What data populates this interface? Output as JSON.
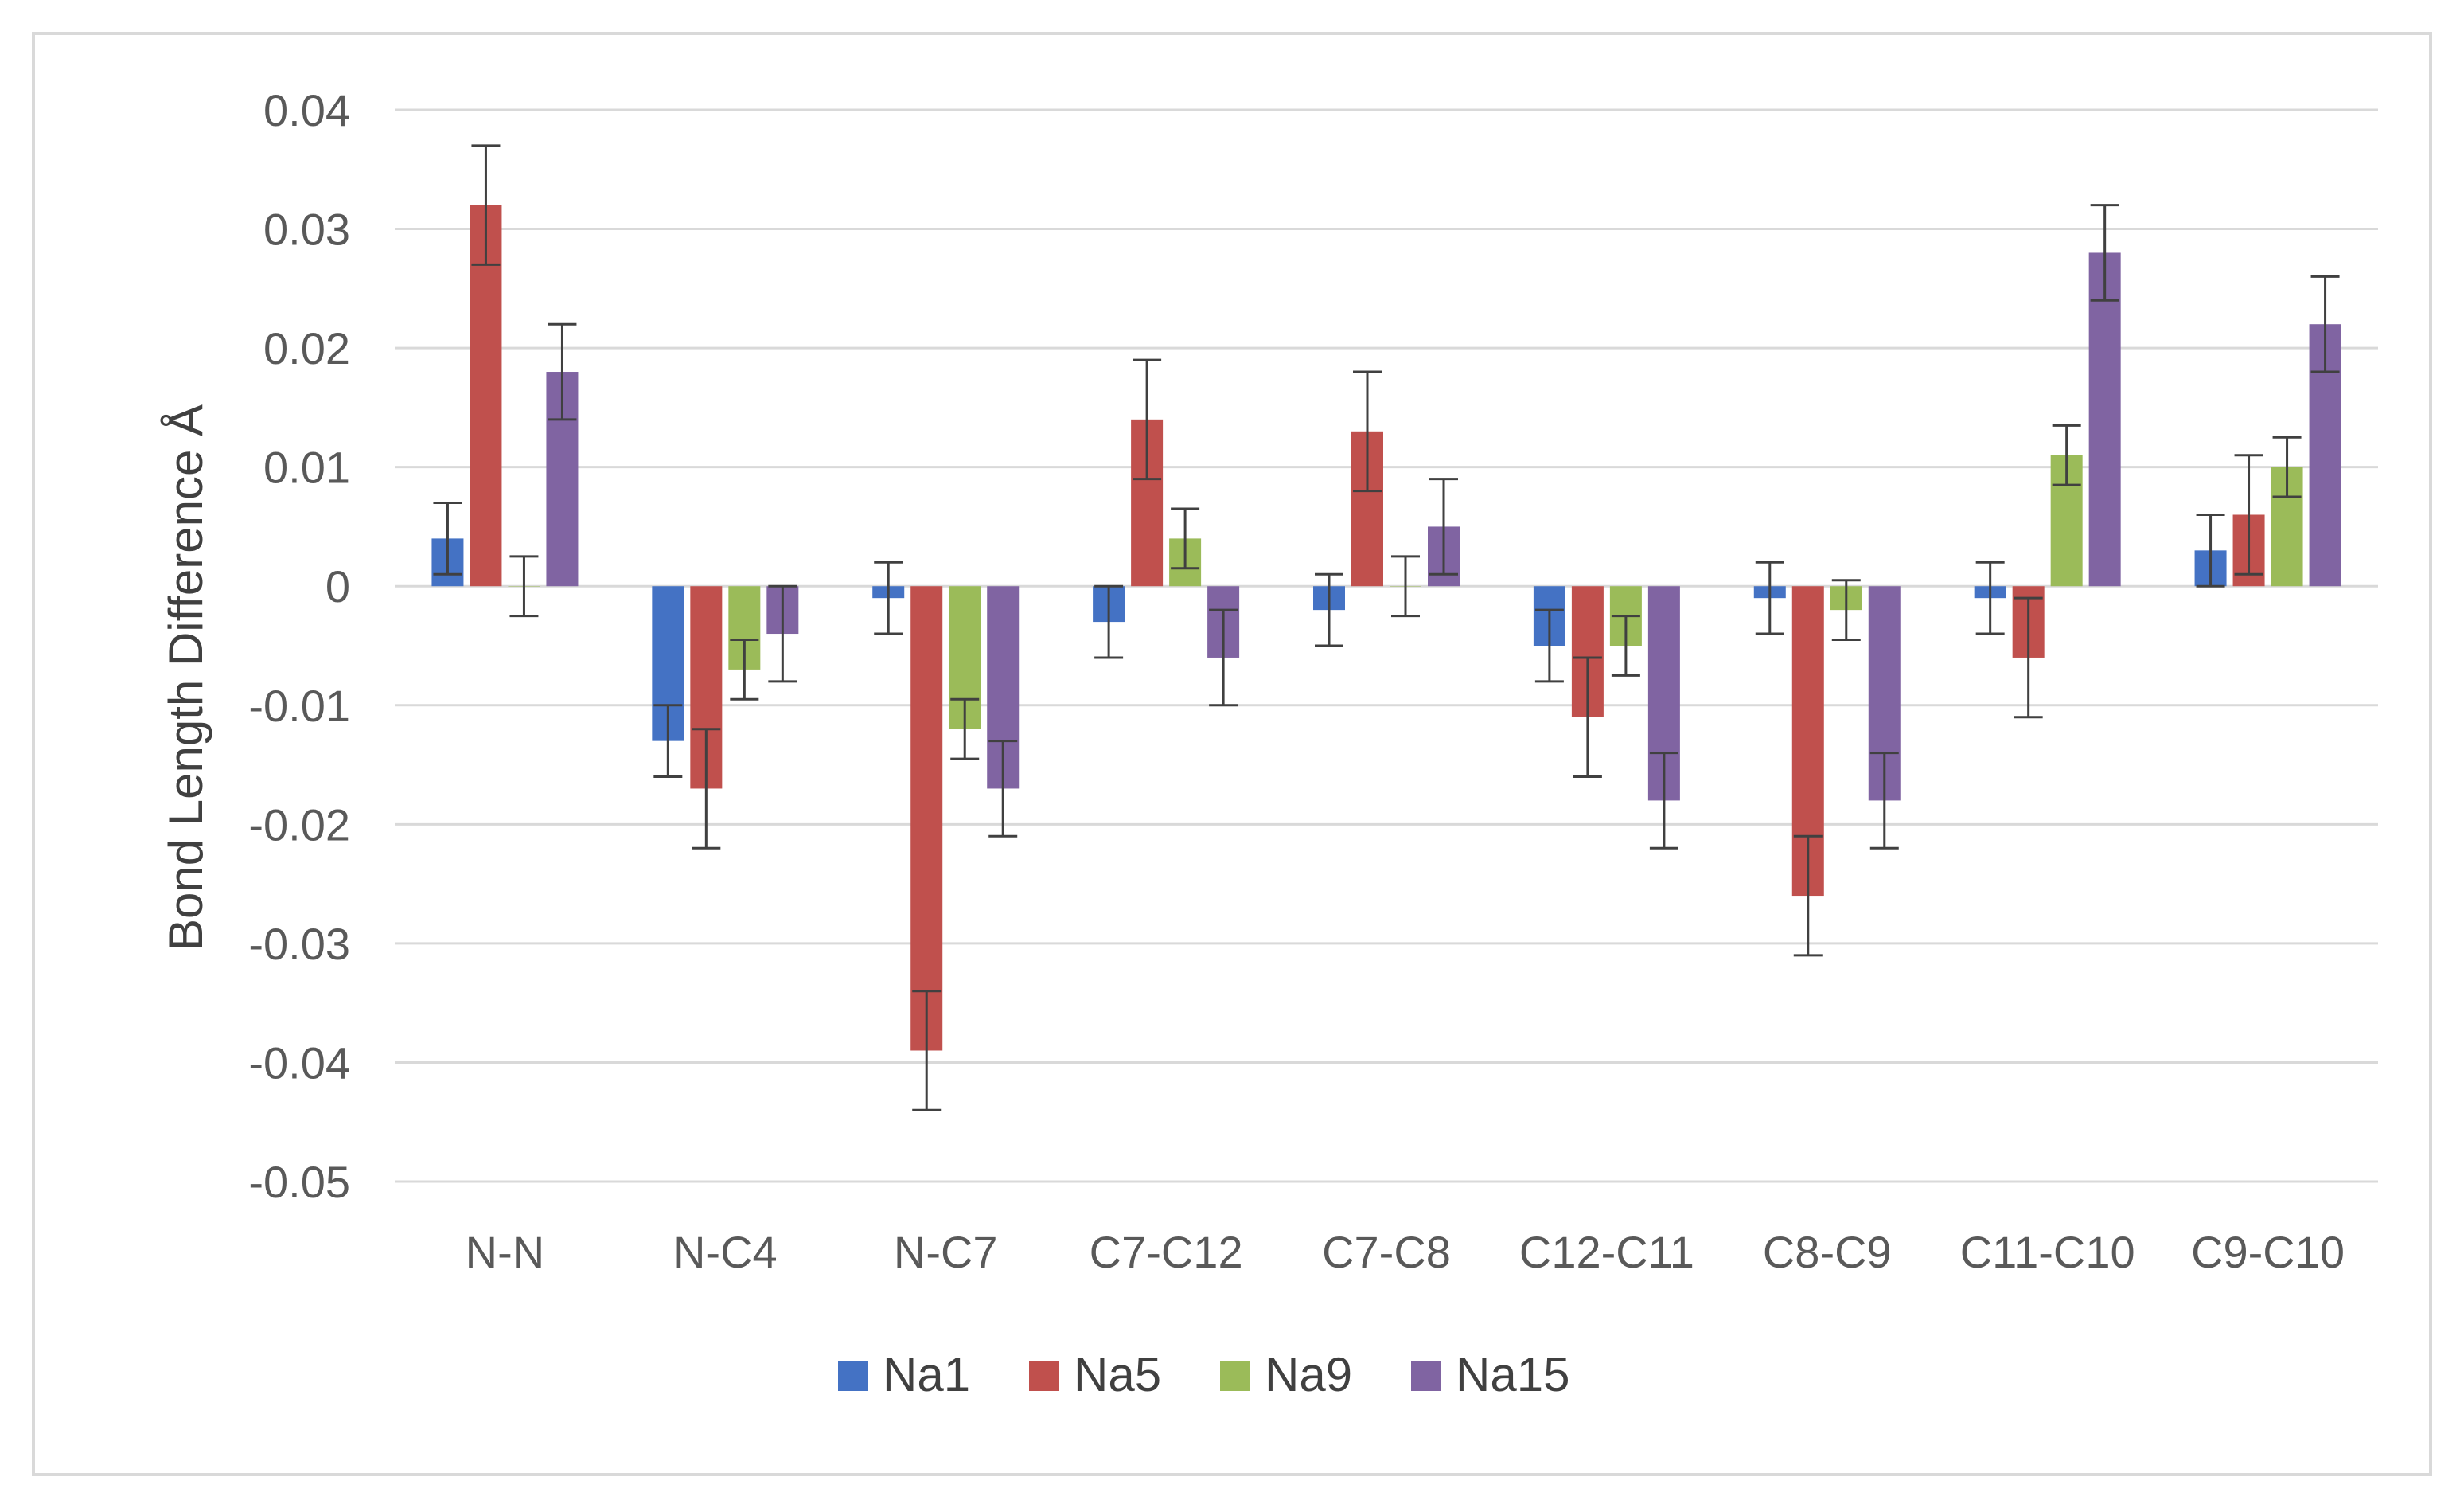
{
  "chart_data": {
    "type": "bar",
    "title": "",
    "xlabel": "",
    "ylabel": "Bond Length Difference Å",
    "ylim": [
      -0.05,
      0.04
    ],
    "yticks": [
      0.04,
      0.03,
      0.02,
      0.01,
      0,
      -0.01,
      -0.02,
      -0.03,
      -0.04,
      -0.05
    ],
    "ytick_labels": [
      "0.04",
      "0.03",
      "0.02",
      "0.01",
      "0",
      "-0.01",
      "-0.02",
      "-0.03",
      "-0.04",
      "-0.05"
    ],
    "grid": true,
    "legend_position": "bottom",
    "categories": [
      "N-N",
      "N-C4",
      "N-C7",
      "C7-C12",
      "C7-C8",
      "C12-C11",
      "C8-C9",
      "C11-C10",
      "C9-C10"
    ],
    "series": [
      {
        "name": "Na1",
        "color": "#4472c4",
        "values": [
          0.004,
          -0.013,
          -0.001,
          -0.003,
          -0.002,
          -0.005,
          -0.001,
          -0.001,
          0.003
        ],
        "errors": [
          0.003,
          0.003,
          0.003,
          0.003,
          0.003,
          0.003,
          0.003,
          0.003,
          0.003
        ]
      },
      {
        "name": "Na5",
        "color": "#c0504d",
        "values": [
          0.032,
          -0.017,
          -0.039,
          0.014,
          0.013,
          -0.011,
          -0.026,
          -0.006,
          0.006
        ],
        "errors": [
          0.005,
          0.005,
          0.005,
          0.005,
          0.005,
          0.005,
          0.005,
          0.005,
          0.005
        ]
      },
      {
        "name": "Na9",
        "color": "#9bbb59",
        "values": [
          0.0,
          -0.007,
          -0.012,
          0.004,
          0.0,
          -0.005,
          -0.002,
          0.011,
          0.01
        ],
        "errors": [
          0.0025,
          0.0025,
          0.0025,
          0.0025,
          0.0025,
          0.0025,
          0.0025,
          0.0025,
          0.0025
        ]
      },
      {
        "name": "Na15",
        "color": "#8064a2",
        "values": [
          0.018,
          -0.004,
          -0.017,
          -0.006,
          0.005,
          -0.018,
          -0.018,
          0.028,
          0.022
        ],
        "errors": [
          0.004,
          0.004,
          0.004,
          0.004,
          0.004,
          0.004,
          0.004,
          0.004,
          0.004
        ]
      }
    ]
  }
}
